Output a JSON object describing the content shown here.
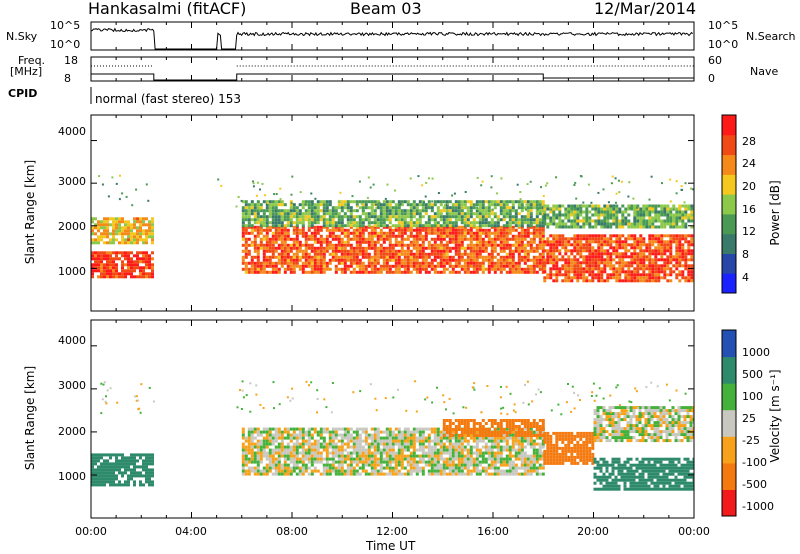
{
  "header": {
    "station": "Hankasalmi (fitACF)",
    "beam": "Beam 03",
    "date": "12/Mar/2014"
  },
  "panels": {
    "nsky_label": "N.Sky",
    "nsearch_label": "N.Search",
    "nsky_ticks": [
      "10^5",
      "10^0"
    ],
    "nsearch_ticks": [
      "10^5",
      "10^0"
    ],
    "freq_label_top": "Freq.",
    "freq_label_bottom": "[MHz]",
    "freq_ticks": [
      "18",
      "8"
    ],
    "nave_label": "Nave",
    "nave_ticks": [
      "60",
      "0"
    ],
    "cpid_label": "CPID",
    "cpid_text": "normal (fast stereo)  153"
  },
  "axes": {
    "ylabel": "Slant Range [km]",
    "yticks": [
      "4000",
      "3000",
      "2000",
      "1000"
    ],
    "xticks": [
      "00:00",
      "04:00",
      "08:00",
      "12:00",
      "16:00",
      "20:00",
      "00:00"
    ],
    "xlabel": "Time UT"
  },
  "colorbars": {
    "power": {
      "label": "Power [dB]",
      "ticks": [
        "28",
        "24",
        "20",
        "16",
        "12",
        "8",
        "4"
      ]
    },
    "velocity": {
      "label": "Velocity [m s⁻¹]",
      "ticks": [
        "1000",
        "500",
        "100",
        "25",
        "-25",
        "-100",
        "-500",
        "-1000"
      ]
    }
  },
  "chart_data": [
    {
      "type": "heatmap",
      "title": "Power",
      "xlabel": "",
      "ylabel": "Slant Range [km]",
      "xlim": [
        "00:00",
        "24:00"
      ],
      "ylim": [
        0,
        4600
      ],
      "colorbar_label": "Power [dB]",
      "colorbar_range": [
        0,
        32
      ],
      "data_gaps": [
        [
          "02:30",
          "05:00"
        ],
        [
          "05:10",
          "05:45"
        ]
      ],
      "regions": [
        {
          "t": [
            "00:00",
            "02:30"
          ],
          "range_km": [
            800,
            1400
          ],
          "power_db": 28
        },
        {
          "t": [
            "00:00",
            "02:30"
          ],
          "range_km": [
            1600,
            2200
          ],
          "power_db": 20
        },
        {
          "t": [
            "06:00",
            "18:00"
          ],
          "range_km": [
            900,
            2000
          ],
          "power_db": 26
        },
        {
          "t": [
            "06:00",
            "18:00"
          ],
          "range_km": [
            2000,
            2600
          ],
          "power_db": 14
        },
        {
          "t": [
            "18:00",
            "24:00"
          ],
          "range_km": [
            700,
            1800
          ],
          "power_db": 27
        },
        {
          "t": [
            "18:00",
            "24:00"
          ],
          "range_km": [
            2000,
            2500
          ],
          "power_db": 14
        }
      ]
    },
    {
      "type": "heatmap",
      "title": "Velocity",
      "xlabel": "Time UT",
      "ylabel": "Slant Range [km]",
      "xlim": [
        "00:00",
        "24:00"
      ],
      "ylim": [
        0,
        4600
      ],
      "colorbar_label": "Velocity [m s⁻¹]",
      "colorbar_range": [
        -1000,
        1000
      ],
      "data_gaps": [
        [
          "02:30",
          "05:00"
        ],
        [
          "05:10",
          "05:45"
        ]
      ],
      "regions": [
        {
          "t": [
            "00:00",
            "02:30"
          ],
          "range_km": [
            800,
            1500
          ],
          "velocity": 250
        },
        {
          "t": [
            "06:00",
            "18:00"
          ],
          "range_km": [
            1000,
            2100
          ],
          "velocity": 0
        },
        {
          "t": [
            "14:00",
            "18:00"
          ],
          "range_km": [
            1900,
            2300
          ],
          "velocity": -300
        },
        {
          "t": [
            "18:00",
            "20:00"
          ],
          "range_km": [
            1300,
            2000
          ],
          "velocity": -300
        },
        {
          "t": [
            "20:00",
            "24:00"
          ],
          "range_km": [
            700,
            1400
          ],
          "velocity": 300
        },
        {
          "t": [
            "20:00",
            "24:00"
          ],
          "range_km": [
            1800,
            2600
          ],
          "velocity": 0
        }
      ]
    }
  ]
}
